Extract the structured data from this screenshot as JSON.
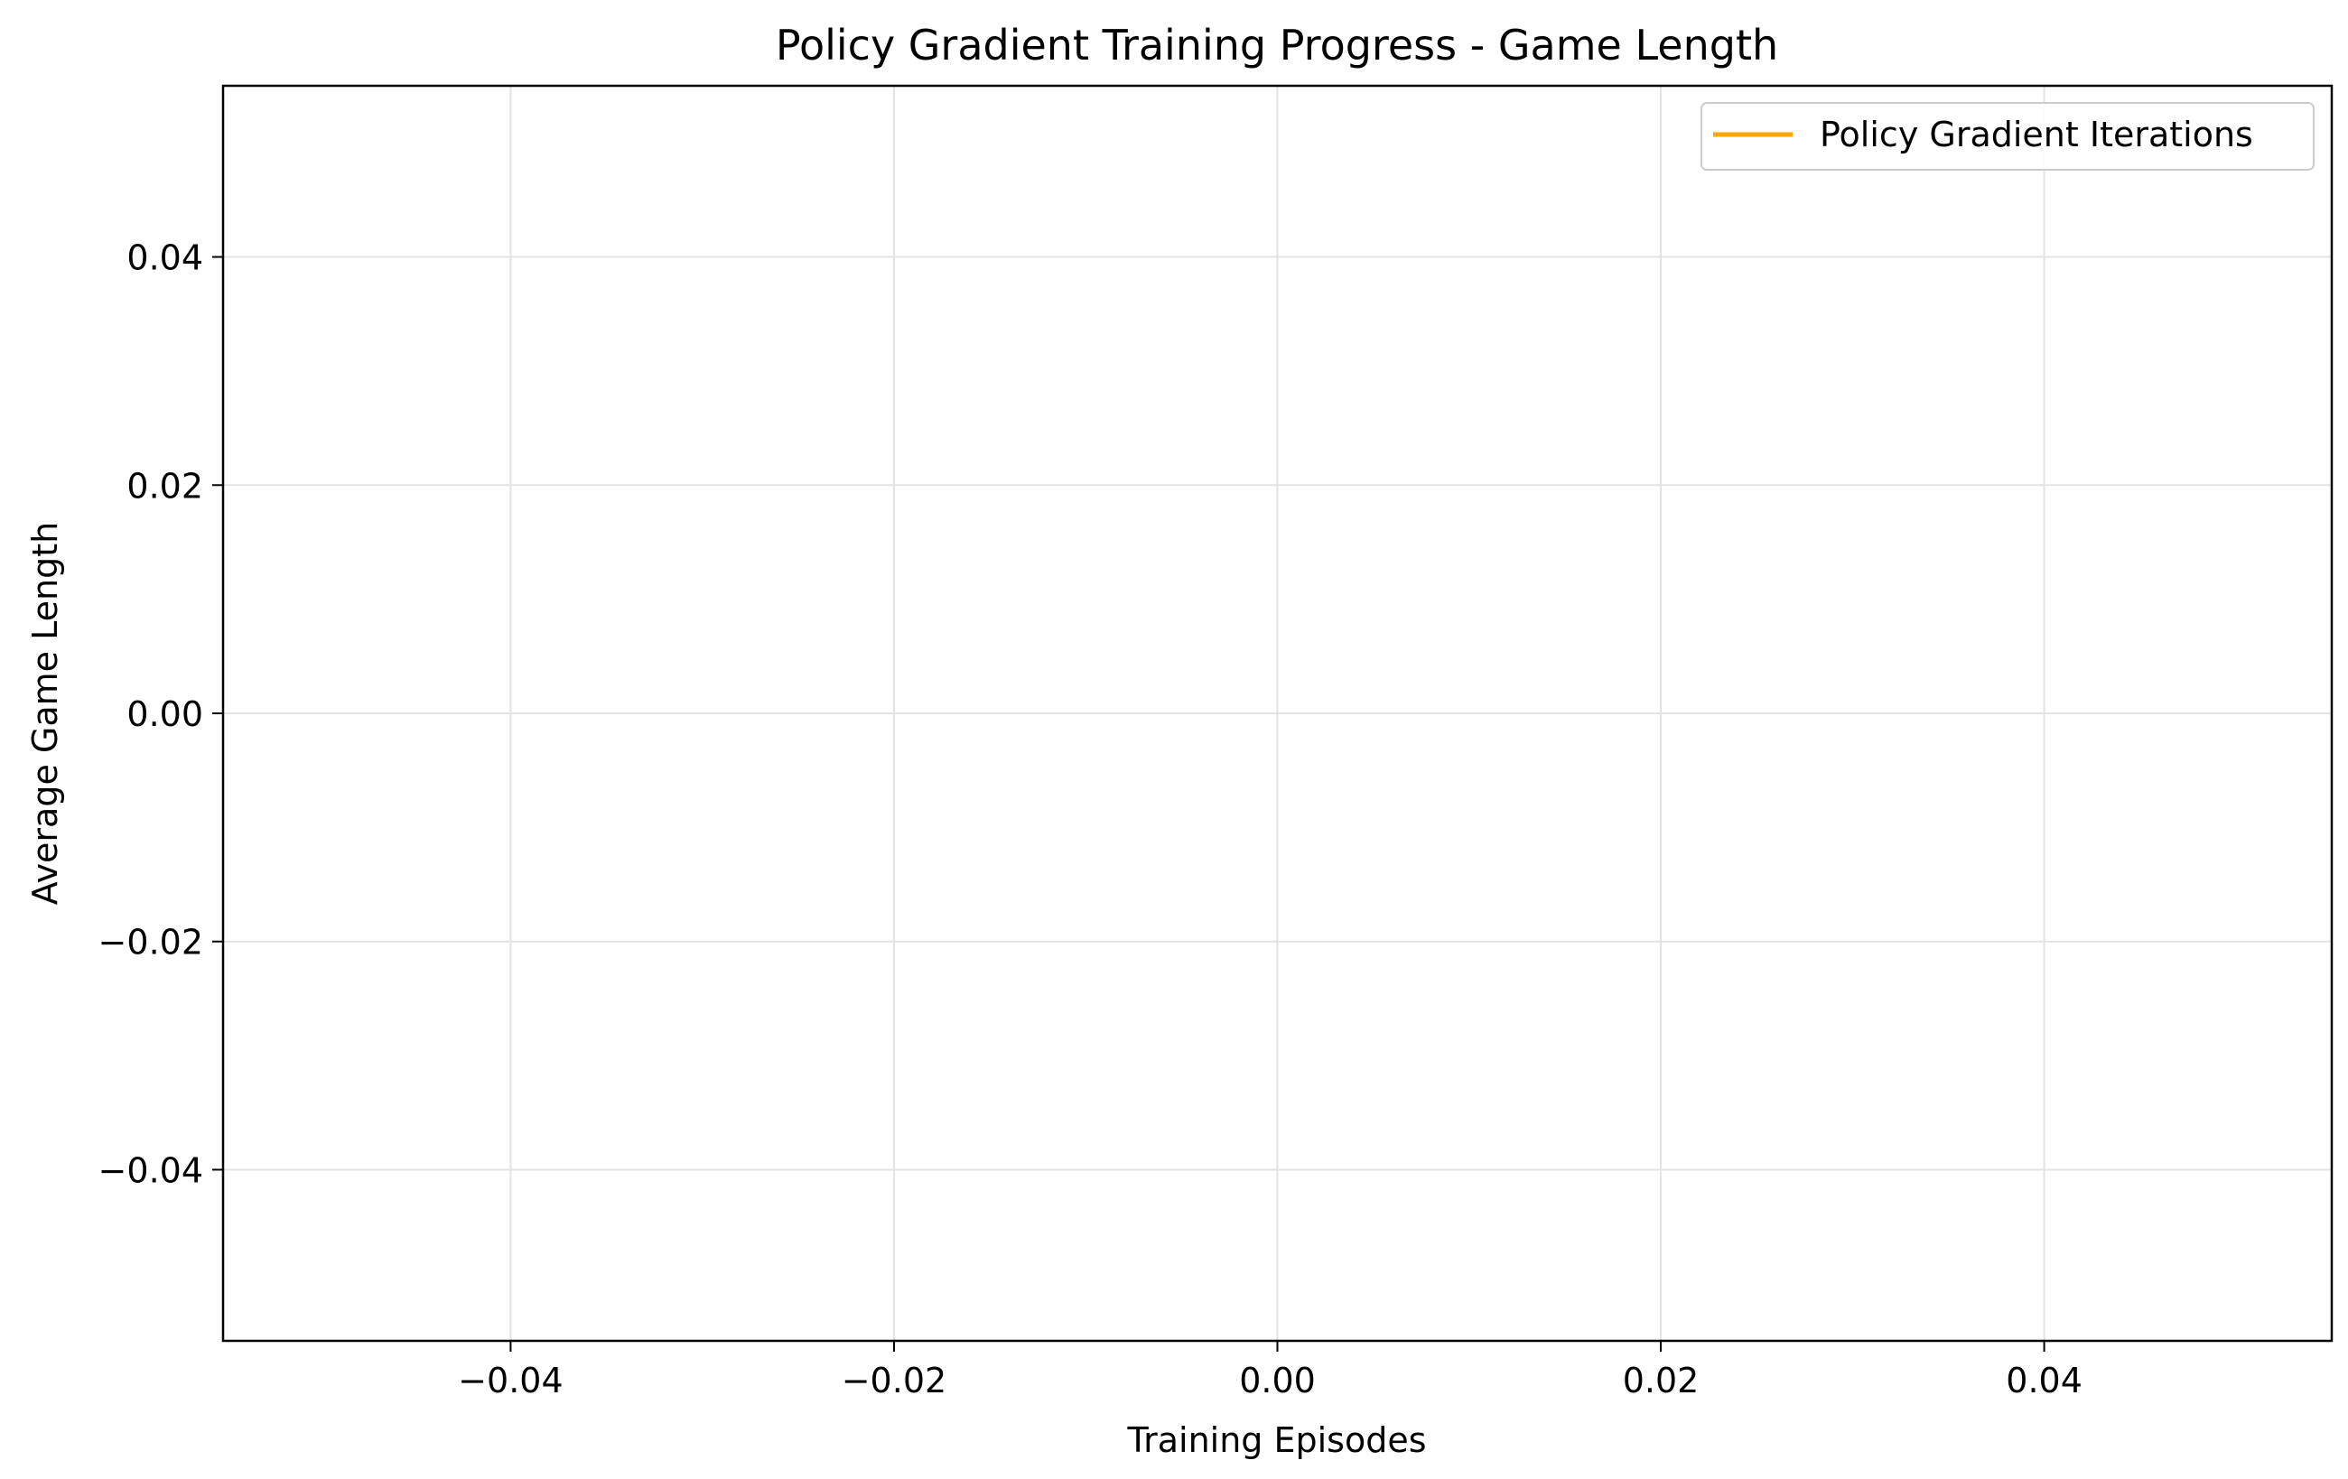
{
  "chart_data": {
    "type": "line",
    "title": "Policy Gradient Training Progress - Game Length",
    "xlabel": "Training Episodes",
    "ylabel": "Average Game Length",
    "xlim": [
      -0.055,
      0.055
    ],
    "ylim": [
      -0.055,
      0.055
    ],
    "xticks": [
      -0.04,
      -0.02,
      0.0,
      0.02,
      0.04
    ],
    "xtick_labels": [
      "−0.04",
      "−0.02",
      "0.00",
      "0.02",
      "0.04"
    ],
    "yticks": [
      0.04,
      0.02,
      0.0,
      -0.02,
      -0.04
    ],
    "ytick_labels": [
      "0.04",
      "0.02",
      "0.00",
      "−0.02",
      "−0.04"
    ],
    "grid": true,
    "legend_position": "top-right",
    "series": [
      {
        "name": "Policy Gradient Iterations",
        "color": "#FFA500",
        "x": [],
        "y": []
      }
    ]
  }
}
